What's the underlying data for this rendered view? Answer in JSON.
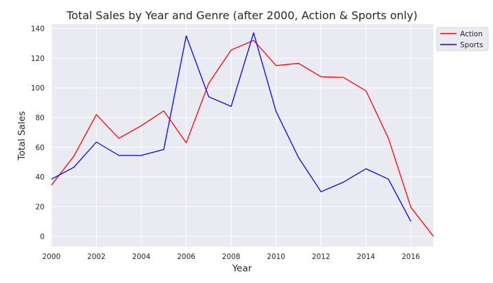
{
  "chart_data": {
    "type": "line",
    "title": "Total Sales by Year and Genre (after 2000, Action & Sports only)",
    "xlabel": "Year",
    "ylabel": "Total Sales",
    "xlim": [
      2000,
      2017
    ],
    "ylim": [
      -7,
      143
    ],
    "x_ticks": [
      2000,
      2002,
      2004,
      2006,
      2008,
      2010,
      2012,
      2014,
      2016
    ],
    "y_ticks": [
      0,
      20,
      40,
      60,
      80,
      100,
      120,
      140
    ],
    "grid": true,
    "legend_position": "top-right",
    "series": [
      {
        "name": "Action",
        "color": "#ff0000",
        "x": [
          2000,
          2001,
          2002,
          2003,
          2004,
          2005,
          2006,
          2007,
          2008,
          2009,
          2010,
          2011,
          2012,
          2013,
          2014,
          2015,
          2016,
          2017
        ],
        "values": [
          34.5,
          54,
          82,
          66,
          74.5,
          84.5,
          63,
          103,
          125.5,
          132,
          115,
          116.5,
          107.5,
          107,
          98,
          66,
          19.5,
          0
        ]
      },
      {
        "name": "Sports",
        "color": "#0000ff",
        "x": [
          2000,
          2001,
          2002,
          2003,
          2004,
          2005,
          2006,
          2007,
          2008,
          2009,
          2010,
          2011,
          2012,
          2013,
          2014,
          2015,
          2016
        ],
        "values": [
          38.5,
          46.5,
          63.5,
          54.5,
          54.5,
          58.5,
          135,
          94,
          87.5,
          137,
          84,
          53,
          30,
          36.5,
          45.5,
          38.5,
          10
        ]
      }
    ]
  }
}
